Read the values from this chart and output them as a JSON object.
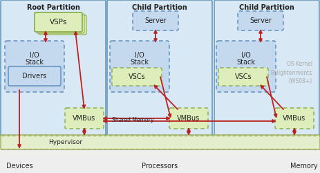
{
  "bg_color": "#f0f4f8",
  "partition_bg": "#d8e8f4",
  "partition_border": "#6699bb",
  "hypervisor_bg": "#e4eecc",
  "hypervisor_border": "#99aa55",
  "hypervisor_dot_border": "#99aa55",
  "box_blue_bg": "#c5d9ee",
  "box_blue_border": "#5588bb",
  "box_blue_dashed_bg": "#d0e4f4",
  "box_green_bg": "#ddeebb",
  "box_green_border": "#88aa44",
  "vmbus_bg": "#ddeebb",
  "vmbus_border": "#88aa44",
  "arrow_color": "#bb2222",
  "text_dark": "#222222",
  "text_gray": "#aaaaaa",
  "partitions": [
    "Root Partition",
    "Child Partition",
    "Child Partition"
  ],
  "bottom_labels": [
    "Devices",
    "Processors",
    "Memory"
  ],
  "hypervisor_label": "Hypervisor",
  "note_text": "OS Kernel\nEnlightenments\n(WS08+)"
}
